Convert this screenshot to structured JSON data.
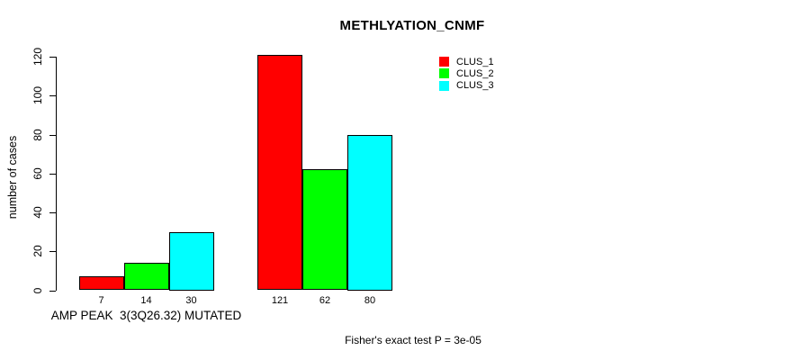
{
  "chart_data": {
    "type": "bar",
    "title": "METHLYATION_CNMF",
    "ylabel": "number of cases",
    "xlabel": "",
    "ylim": [
      0,
      120
    ],
    "yticks": [
      0,
      20,
      40,
      60,
      80,
      100,
      120
    ],
    "grid": false,
    "legend_position": "top-right",
    "categories": [
      "AMP PEAK  3(3Q26.32) MUTATED",
      ""
    ],
    "series": [
      {
        "name": "CLUS_1",
        "color": "#FF0000",
        "values": [
          7,
          121
        ]
      },
      {
        "name": "CLUS_2",
        "color": "#00FF00",
        "values": [
          14,
          62
        ]
      },
      {
        "name": "CLUS_3",
        "color": "#00FFFF",
        "values": [
          30,
          80
        ]
      }
    ],
    "bar_value_labels": [
      [
        7,
        14,
        30
      ],
      [
        121,
        62,
        80
      ]
    ],
    "footnote": "Fisher's exact test P = 3e-05",
    "colors": {
      "axis": "#000000",
      "background": "#FFFFFF",
      "text": "#000000"
    }
  }
}
